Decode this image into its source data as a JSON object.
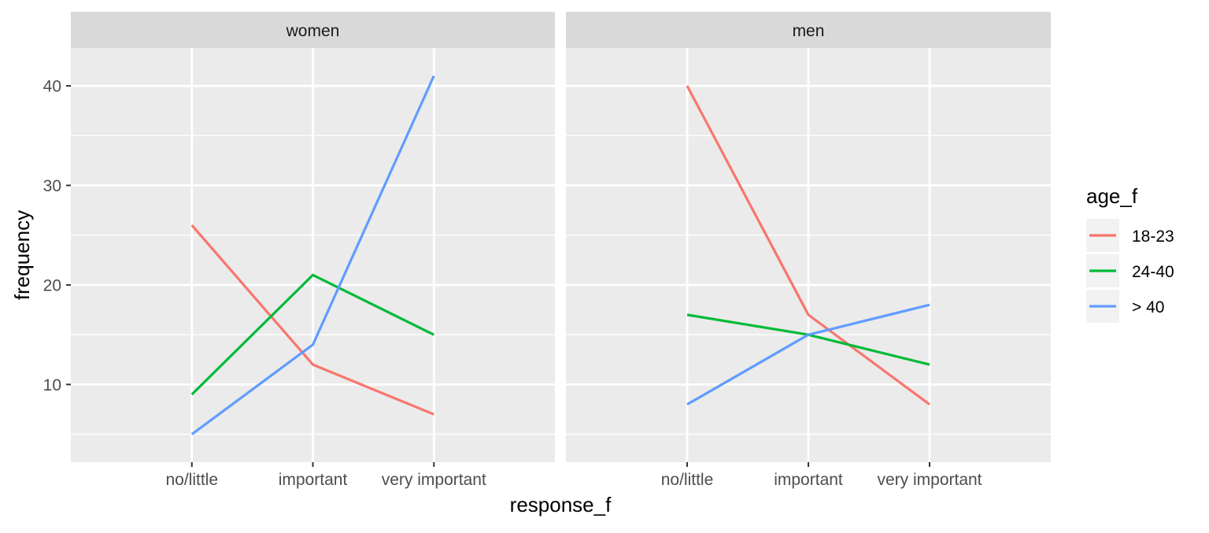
{
  "chart_data": {
    "type": "line",
    "xlabel": "response_f",
    "ylabel": "frequency",
    "categories": [
      "no/little",
      "important",
      "very important"
    ],
    "yticks": [
      10,
      20,
      30,
      40
    ],
    "ylim": [
      2.2,
      43.8
    ],
    "grid": true,
    "legend": {
      "title": "age_f",
      "position": "right",
      "entries": [
        "18-23",
        "24-40",
        "> 40"
      ]
    },
    "colors": {
      "18-23": "#F8766D",
      "24-40": "#00BA38",
      "> 40": "#619CFF"
    },
    "facets": [
      {
        "label": "women",
        "series": [
          {
            "name": "18-23",
            "values": [
              26,
              12,
              7
            ]
          },
          {
            "name": "24-40",
            "values": [
              9,
              21,
              15
            ]
          },
          {
            "name": "> 40",
            "values": [
              5,
              14,
              41
            ]
          }
        ]
      },
      {
        "label": "men",
        "series": [
          {
            "name": "18-23",
            "values": [
              40,
              17,
              8
            ]
          },
          {
            "name": "24-40",
            "values": [
              17,
              15,
              12
            ]
          },
          {
            "name": "> 40",
            "values": [
              8,
              15,
              18
            ]
          }
        ]
      }
    ]
  }
}
